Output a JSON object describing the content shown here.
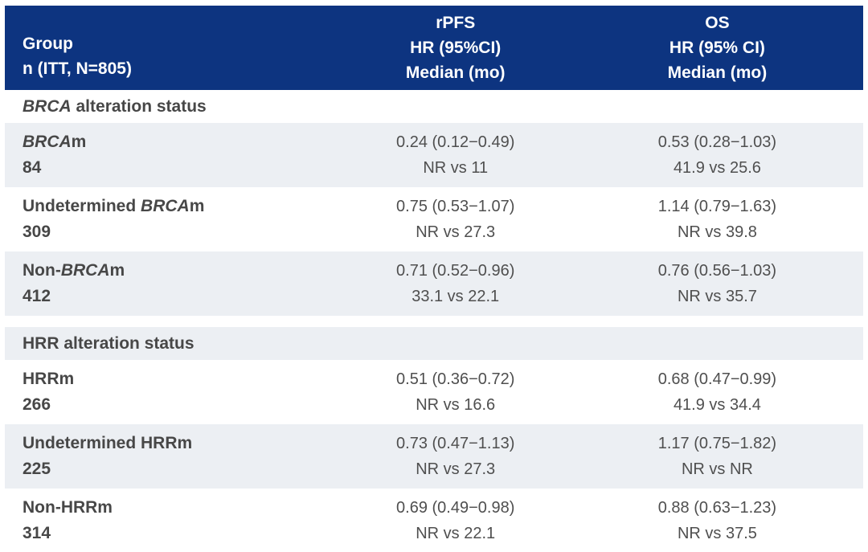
{
  "colors": {
    "header_bg": "#0d3480",
    "header_text": "#ffffff",
    "row_shade": "#eceff3",
    "text_bold": "#474747",
    "text_data": "#4f4f4f"
  },
  "header": {
    "group": {
      "line1": "Group",
      "line2": "n (ITT, N=805)"
    },
    "rpfs": {
      "line1": "rPFS",
      "line2": "HR (95%CI)",
      "line3": "Median (mo)"
    },
    "os": {
      "line1": "OS",
      "line2": "HR (95% CI)",
      "line3": "Median (mo)"
    }
  },
  "sections": [
    {
      "label": [
        {
          "t": "BRCA",
          "i": true
        },
        {
          "t": " alteration status",
          "i": false
        }
      ],
      "label_shaded": false,
      "rows": [
        {
          "name": [
            {
              "t": "BRCA",
              "i": true
            },
            {
              "t": "m",
              "i": false
            }
          ],
          "n": "84",
          "shaded": true,
          "rpfs": {
            "hr": "0.24 (0.12−0.49)",
            "median": "NR vs 11"
          },
          "os": {
            "hr": "0.53 (0.28−1.03)",
            "median": "41.9 vs 25.6"
          }
        },
        {
          "name": [
            {
              "t": "Undetermined ",
              "i": false
            },
            {
              "t": "BRCA",
              "i": true
            },
            {
              "t": "m",
              "i": false
            }
          ],
          "n": "309",
          "shaded": false,
          "rpfs": {
            "hr": "0.75 (0.53−1.07)",
            "median": "NR vs 27.3"
          },
          "os": {
            "hr": "1.14 (0.79−1.63)",
            "median": "NR vs 39.8"
          }
        },
        {
          "name": [
            {
              "t": "Non-",
              "i": false
            },
            {
              "t": "BRCA",
              "i": true
            },
            {
              "t": "m",
              "i": false
            }
          ],
          "n": "412",
          "shaded": true,
          "rpfs": {
            "hr": "0.71 (0.52−0.96)",
            "median": "33.1 vs 22.1"
          },
          "os": {
            "hr": "0.76 (0.56−1.03)",
            "median": "NR vs 35.7"
          }
        }
      ]
    },
    {
      "label": [
        {
          "t": "HRR alteration status",
          "i": false
        }
      ],
      "label_shaded": true,
      "rows": [
        {
          "name": [
            {
              "t": "HRRm",
              "i": false
            }
          ],
          "n": "266",
          "shaded": false,
          "rpfs": {
            "hr": "0.51 (0.36−0.72)",
            "median": "NR vs 16.6"
          },
          "os": {
            "hr": "0.68 (0.47−0.99)",
            "median": "41.9 vs 34.4"
          }
        },
        {
          "name": [
            {
              "t": "Undetermined HRRm",
              "i": false
            }
          ],
          "n": "225",
          "shaded": true,
          "rpfs": {
            "hr": "0.73 (0.47−1.13)",
            "median": "NR vs 27.3"
          },
          "os": {
            "hr": "1.17 (0.75−1.82)",
            "median": "NR vs NR"
          }
        },
        {
          "name": [
            {
              "t": "Non-HRRm",
              "i": false
            }
          ],
          "n": "314",
          "shaded": false,
          "rpfs": {
            "hr": "0.69 (0.49−0.98)",
            "median": "NR vs 22.1"
          },
          "os": {
            "hr": "0.88 (0.63−1.23)",
            "median": "NR vs 37.5"
          }
        }
      ]
    }
  ]
}
